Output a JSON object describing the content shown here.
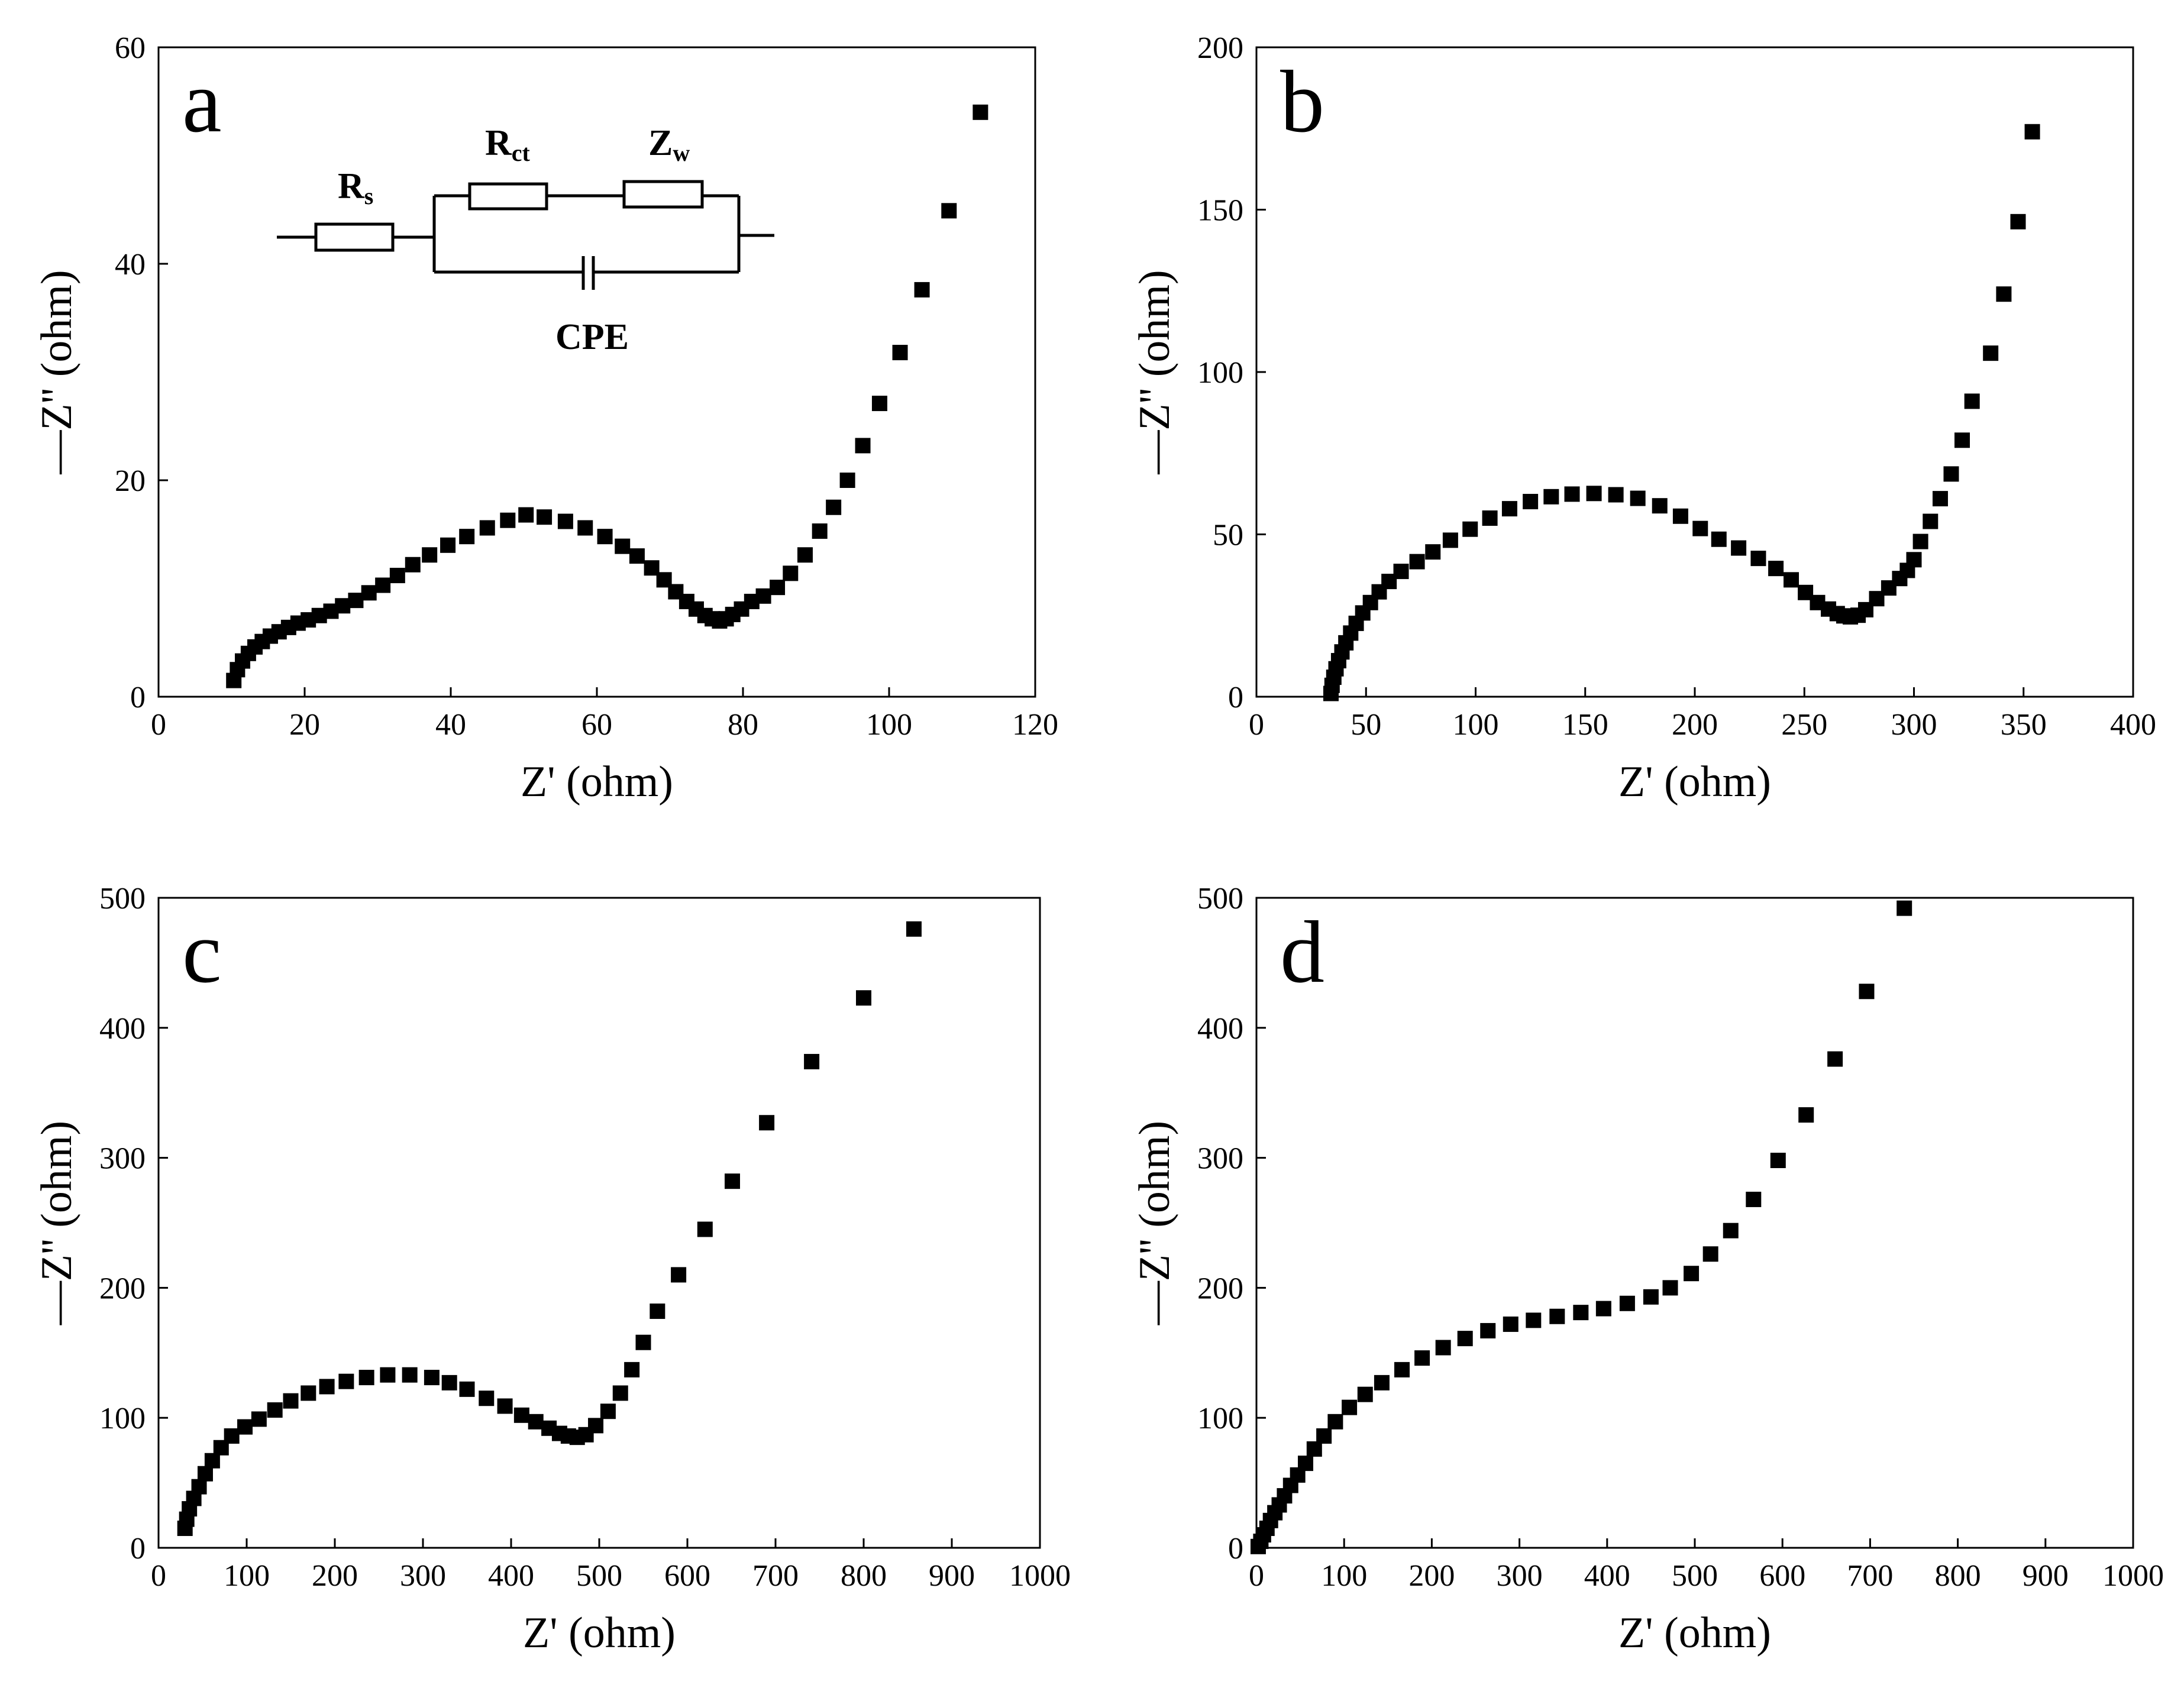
{
  "colors": {
    "marker": "#000000",
    "axis": "#000000",
    "background": "#ffffff"
  },
  "inset": {
    "resistor_rs": {
      "main": "R",
      "sub": "s"
    },
    "resistor_rct": {
      "main": "R",
      "sub": "ct"
    },
    "resistor_zw": {
      "main": "Z",
      "sub": "w"
    },
    "capacitor": "CPE"
  },
  "chart_data": [
    {
      "type": "scatter",
      "panel": "a",
      "xlabel": "Z' (ohm)",
      "ylabel": "—Z'' (ohm)",
      "xlim": [
        0,
        120
      ],
      "ylim": [
        0,
        60
      ],
      "xticks": [
        0,
        20,
        40,
        60,
        80,
        100,
        120
      ],
      "yticks": [
        0,
        20,
        40,
        60
      ],
      "series": [
        {
          "name": "a",
          "points": [
            [
              10.3,
              1.5
            ],
            [
              10.8,
              2.5
            ],
            [
              11.5,
              3.3
            ],
            [
              12.3,
              4
            ],
            [
              13.2,
              4.6
            ],
            [
              14.2,
              5.1
            ],
            [
              15.3,
              5.6
            ],
            [
              16.5,
              6
            ],
            [
              17.8,
              6.4
            ],
            [
              19.1,
              6.8
            ],
            [
              20.5,
              7.1
            ],
            [
              22,
              7.5
            ],
            [
              23.6,
              7.9
            ],
            [
              25.2,
              8.4
            ],
            [
              27,
              8.9
            ],
            [
              28.8,
              9.6
            ],
            [
              30.7,
              10.3
            ],
            [
              32.7,
              11.2
            ],
            [
              34.8,
              12.2
            ],
            [
              37.1,
              13.1
            ],
            [
              39.6,
              14
            ],
            [
              42.2,
              14.8
            ],
            [
              45,
              15.6
            ],
            [
              47.8,
              16.3
            ],
            [
              50.3,
              16.8
            ],
            [
              52.8,
              16.6
            ],
            [
              55.7,
              16.2
            ],
            [
              58.4,
              15.6
            ],
            [
              61.1,
              14.8
            ],
            [
              63.5,
              13.9
            ],
            [
              65.5,
              13
            ],
            [
              67.5,
              11.9
            ],
            [
              69.2,
              10.8
            ],
            [
              70.8,
              9.7
            ],
            [
              72.3,
              8.8
            ],
            [
              73.6,
              8.1
            ],
            [
              74.8,
              7.5
            ],
            [
              75.8,
              7.2
            ],
            [
              76.8,
              7
            ],
            [
              77.7,
              7.2
            ],
            [
              78.6,
              7.6
            ],
            [
              79.8,
              8.1
            ],
            [
              81.2,
              8.8
            ],
            [
              82.8,
              9.3
            ],
            [
              84.7,
              10.1
            ],
            [
              86.5,
              11.4
            ],
            [
              88.5,
              13.1
            ],
            [
              90.5,
              15.3
            ],
            [
              92.4,
              17.5
            ],
            [
              94.3,
              20
            ],
            [
              96.4,
              23.2
            ],
            [
              98.7,
              27.1
            ],
            [
              101.5,
              31.8
            ],
            [
              104.5,
              37.6
            ],
            [
              108.2,
              44.9
            ],
            [
              112.5,
              54
            ]
          ]
        }
      ]
    },
    {
      "type": "scatter",
      "panel": "b",
      "xlabel": "Z' (ohm)",
      "ylabel": "—Z'' (ohm)",
      "xlim": [
        0,
        400
      ],
      "ylim": [
        0,
        200
      ],
      "xticks": [
        0,
        50,
        100,
        150,
        200,
        250,
        300,
        350,
        400
      ],
      "yticks": [
        0,
        50,
        100,
        150,
        200
      ],
      "series": [
        {
          "name": "b",
          "points": [
            [
              34,
              1
            ],
            [
              34.5,
              3.5
            ],
            [
              35.3,
              6
            ],
            [
              36.3,
              8.6
            ],
            [
              37.5,
              11.1
            ],
            [
              39,
              13.8
            ],
            [
              40.8,
              16.6
            ],
            [
              43,
              19.6
            ],
            [
              45.5,
              22.6
            ],
            [
              48.5,
              25.8
            ],
            [
              52,
              29
            ],
            [
              56,
              32.3
            ],
            [
              60.5,
              35.5
            ],
            [
              66,
              38.6
            ],
            [
              73.3,
              41.6
            ],
            [
              80.5,
              44.6
            ],
            [
              88.5,
              48.2
            ],
            [
              97.5,
              51.6
            ],
            [
              106.5,
              55
            ],
            [
              115.5,
              57.9
            ],
            [
              125,
              60.1
            ],
            [
              134.5,
              61.6
            ],
            [
              144,
              62.4
            ],
            [
              154,
              62.6
            ],
            [
              164,
              62.2
            ],
            [
              174,
              61.1
            ],
            [
              184,
              58.8
            ],
            [
              193.5,
              55.6
            ],
            [
              202.5,
              51.8
            ],
            [
              211,
              48.5
            ],
            [
              220,
              45.8
            ],
            [
              229,
              42.6
            ],
            [
              237,
              39.5
            ],
            [
              244,
              36
            ],
            [
              250.5,
              32.1
            ],
            [
              256,
              29
            ],
            [
              261,
              27
            ],
            [
              265,
              25.6
            ],
            [
              268,
              24.9
            ],
            [
              271,
              24.6
            ],
            [
              274.5,
              25.1
            ],
            [
              278,
              26.8
            ],
            [
              283,
              30.2
            ],
            [
              288.5,
              33.5
            ],
            [
              293.5,
              36.4
            ],
            [
              297,
              38.9
            ],
            [
              300,
              42.2
            ],
            [
              303,
              47.8
            ],
            [
              307.5,
              54
            ],
            [
              312,
              61
            ],
            [
              317,
              68.6
            ],
            [
              322,
              79
            ],
            [
              326.5,
              91
            ],
            [
              335,
              105.8
            ],
            [
              341,
              124
            ],
            [
              347.5,
              146.3
            ],
            [
              354,
              174
            ]
          ]
        }
      ]
    },
    {
      "type": "scatter",
      "panel": "c",
      "xlabel": "Z' (ohm)",
      "ylabel": "—Z'' (ohm)",
      "xlim": [
        0,
        1000
      ],
      "ylim": [
        0,
        500
      ],
      "xticks": [
        0,
        100,
        200,
        300,
        400,
        500,
        600,
        700,
        800,
        900,
        1000
      ],
      "yticks": [
        0,
        100,
        200,
        300,
        400,
        500
      ],
      "series": [
        {
          "name": "c",
          "points": [
            [
              30,
              15
            ],
            [
              32,
              22
            ],
            [
              35,
              30
            ],
            [
              40,
              38
            ],
            [
              46,
              47
            ],
            [
              53,
              57
            ],
            [
              61,
              67
            ],
            [
              71,
              77
            ],
            [
              83,
              86
            ],
            [
              98,
              93
            ],
            [
              114,
              99
            ],
            [
              132,
              106
            ],
            [
              150,
              113
            ],
            [
              170,
              119
            ],
            [
              191,
              124
            ],
            [
              213,
              128
            ],
            [
              236,
              131
            ],
            [
              260,
              133
            ],
            [
              285,
              133
            ],
            [
              310,
              131
            ],
            [
              330,
              127
            ],
            [
              350,
              122
            ],
            [
              372,
              115
            ],
            [
              393,
              109
            ],
            [
              412,
              102
            ],
            [
              428,
              97
            ],
            [
              443,
              92
            ],
            [
              455,
              88
            ],
            [
              465,
              86
            ],
            [
              475,
              85
            ],
            [
              485,
              87
            ],
            [
              496,
              94
            ],
            [
              510,
              105
            ],
            [
              524,
              119
            ],
            [
              537,
              137
            ],
            [
              550,
              158
            ],
            [
              566,
              182
            ],
            [
              590,
              210
            ],
            [
              620,
              245
            ],
            [
              651,
              282
            ],
            [
              690,
              327
            ],
            [
              741,
              374
            ],
            [
              800,
              423
            ],
            [
              857,
              476
            ]
          ]
        }
      ]
    },
    {
      "type": "scatter",
      "panel": "d",
      "xlabel": "Z' (ohm)",
      "ylabel": "—Z'' (ohm)",
      "xlim": [
        0,
        1000
      ],
      "ylim": [
        0,
        500
      ],
      "xticks": [
        0,
        100,
        200,
        300,
        400,
        500,
        600,
        700,
        800,
        900,
        1000
      ],
      "yticks": [
        0,
        100,
        200,
        300,
        400,
        500
      ],
      "series": [
        {
          "name": "d",
          "points": [
            [
              2,
              1
            ],
            [
              5,
              5
            ],
            [
              8,
              10
            ],
            [
              12,
              15
            ],
            [
              16,
              21
            ],
            [
              21,
              27
            ],
            [
              26,
              33
            ],
            [
              32,
              40
            ],
            [
              39,
              48
            ],
            [
              47,
              56
            ],
            [
              56,
              65
            ],
            [
              66,
              76
            ],
            [
              77,
              86
            ],
            [
              90,
              97
            ],
            [
              106,
              108
            ],
            [
              124,
              118
            ],
            [
              143,
              127
            ],
            [
              166,
              137
            ],
            [
              189,
              146
            ],
            [
              213,
              154
            ],
            [
              238,
              161
            ],
            [
              264,
              167
            ],
            [
              290,
              172
            ],
            [
              316,
              175
            ],
            [
              343,
              178
            ],
            [
              370,
              181
            ],
            [
              396,
              184
            ],
            [
              423,
              188
            ],
            [
              450,
              193
            ],
            [
              472,
              200
            ],
            [
              496,
              211
            ],
            [
              518,
              226
            ],
            [
              541,
              244
            ],
            [
              567,
              268
            ],
            [
              595,
              298
            ],
            [
              627,
              333
            ],
            [
              660,
              376
            ],
            [
              696,
              428
            ],
            [
              739,
              492
            ]
          ]
        }
      ]
    }
  ]
}
